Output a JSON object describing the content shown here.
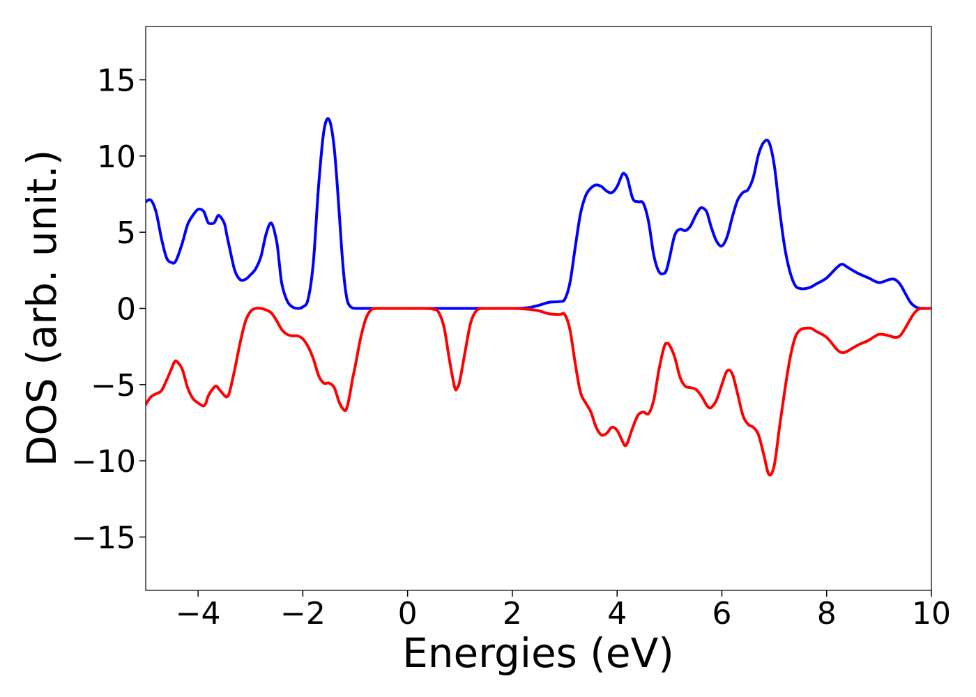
{
  "chart_data": {
    "type": "line",
    "xlabel": "Energies (eV)",
    "ylabel": "DOS (arb. unit.)",
    "xlim": [
      -5,
      10
    ],
    "ylim": [
      -18.5,
      18.5
    ],
    "xticks": [
      -4,
      -2,
      0,
      2,
      4,
      6,
      8,
      10
    ],
    "yticks": [
      -15,
      -10,
      -5,
      0,
      5,
      10,
      15
    ],
    "xtick_labels": [
      "−4",
      "−2",
      "0",
      "2",
      "4",
      "6",
      "8",
      "10"
    ],
    "ytick_labels": [
      "−15",
      "−10",
      "−5",
      "0",
      "5",
      "10",
      "15"
    ],
    "grid": false,
    "legend": "none",
    "series": [
      {
        "color": "#0000ff",
        "x": [
          -5.0,
          -4.9,
          -4.8,
          -4.7,
          -4.6,
          -4.5,
          -4.45,
          -4.4,
          -4.3,
          -4.2,
          -4.1,
          -4.0,
          -3.9,
          -3.85,
          -3.8,
          -3.7,
          -3.65,
          -3.6,
          -3.5,
          -3.45,
          -3.4,
          -3.3,
          -3.2,
          -3.1,
          -3.0,
          -2.9,
          -2.8,
          -2.7,
          -2.6,
          -2.5,
          -2.45,
          -2.4,
          -2.3,
          -2.2,
          -2.1,
          -2.0,
          -1.9,
          -1.8,
          -1.7,
          -1.6,
          -1.5,
          -1.4,
          -1.3,
          -1.25,
          -1.2,
          -1.15,
          -1.1,
          -1.05,
          -1.0,
          -0.9,
          -0.8,
          -0.7,
          -0.6,
          -0.5,
          0.0,
          1.0,
          2.0,
          2.3,
          2.5,
          2.7,
          2.9,
          3.0,
          3.1,
          3.2,
          3.3,
          3.4,
          3.5,
          3.6,
          3.7,
          3.8,
          3.9,
          4.0,
          4.1,
          4.15,
          4.2,
          4.3,
          4.4,
          4.5,
          4.6,
          4.7,
          4.8,
          4.9,
          4.95,
          5.0,
          5.1,
          5.2,
          5.3,
          5.4,
          5.5,
          5.6,
          5.7,
          5.75,
          5.8,
          5.9,
          6.0,
          6.1,
          6.2,
          6.3,
          6.4,
          6.5,
          6.6,
          6.7,
          6.8,
          6.9,
          7.0,
          7.1,
          7.2,
          7.3,
          7.4,
          7.5,
          7.6,
          7.7,
          7.8,
          8.0,
          8.2,
          8.3,
          8.4,
          8.6,
          8.8,
          9.0,
          9.2,
          9.3,
          9.4,
          9.5,
          9.6,
          9.7,
          9.8,
          9.9,
          10.0
        ],
        "values": [
          7.0,
          7.1,
          6.3,
          4.6,
          3.3,
          3.0,
          3.0,
          3.3,
          4.3,
          5.5,
          6.1,
          6.5,
          6.4,
          6.0,
          5.6,
          5.6,
          5.9,
          6.1,
          5.6,
          4.8,
          4.0,
          2.5,
          1.9,
          1.9,
          2.2,
          2.6,
          3.4,
          4.9,
          5.6,
          4.4,
          3.0,
          1.6,
          0.5,
          0.1,
          0.0,
          0.1,
          0.6,
          3.0,
          8.0,
          11.6,
          12.4,
          10.5,
          6.0,
          3.5,
          1.6,
          0.5,
          0.15,
          0.03,
          0.0,
          0.0,
          0.0,
          0.0,
          0.0,
          0.0,
          0.0,
          0.0,
          0.0,
          0.05,
          0.2,
          0.4,
          0.45,
          0.6,
          1.7,
          4.0,
          6.2,
          7.4,
          7.9,
          8.1,
          8.0,
          7.7,
          7.6,
          8.0,
          8.8,
          8.8,
          8.5,
          7.2,
          7.0,
          6.9,
          5.7,
          3.5,
          2.4,
          2.3,
          2.6,
          3.3,
          4.8,
          5.2,
          5.1,
          5.4,
          6.1,
          6.6,
          6.4,
          5.9,
          5.3,
          4.4,
          4.1,
          4.7,
          6.0,
          7.1,
          7.6,
          7.8,
          8.6,
          10.1,
          10.9,
          10.9,
          9.4,
          6.5,
          4.0,
          2.4,
          1.5,
          1.3,
          1.3,
          1.4,
          1.6,
          2.0,
          2.7,
          2.9,
          2.7,
          2.3,
          2.0,
          1.7,
          1.9,
          1.9,
          1.6,
          1.0,
          0.4,
          0.1,
          0.0,
          0.0,
          0.0
        ]
      },
      {
        "color": "#ff0000",
        "x": [
          -5.0,
          -4.9,
          -4.8,
          -4.7,
          -4.6,
          -4.5,
          -4.45,
          -4.4,
          -4.3,
          -4.2,
          -4.1,
          -4.0,
          -3.9,
          -3.85,
          -3.8,
          -3.7,
          -3.65,
          -3.6,
          -3.5,
          -3.45,
          -3.4,
          -3.3,
          -3.2,
          -3.1,
          -3.0,
          -2.9,
          -2.8,
          -2.7,
          -2.6,
          -2.5,
          -2.4,
          -2.3,
          -2.2,
          -2.1,
          -2.0,
          -1.9,
          -1.8,
          -1.7,
          -1.6,
          -1.5,
          -1.4,
          -1.3,
          -1.2,
          -1.15,
          -1.1,
          -1.05,
          -1.0,
          -0.9,
          -0.8,
          -0.7,
          -0.6,
          -0.5,
          -0.3,
          0.0,
          0.3,
          0.5,
          0.6,
          0.7,
          0.8,
          0.9,
          0.95,
          1.0,
          1.1,
          1.2,
          1.3,
          1.4,
          1.5,
          2.0,
          2.3,
          2.5,
          2.7,
          2.9,
          3.0,
          3.1,
          3.2,
          3.3,
          3.4,
          3.5,
          3.6,
          3.7,
          3.8,
          3.9,
          4.0,
          4.1,
          4.15,
          4.2,
          4.3,
          4.4,
          4.5,
          4.6,
          4.7,
          4.8,
          4.9,
          4.95,
          5.0,
          5.1,
          5.2,
          5.3,
          5.4,
          5.5,
          5.6,
          5.7,
          5.75,
          5.8,
          5.9,
          6.0,
          6.1,
          6.2,
          6.3,
          6.4,
          6.5,
          6.6,
          6.7,
          6.8,
          6.9,
          7.0,
          7.1,
          7.2,
          7.3,
          7.4,
          7.5,
          7.6,
          7.7,
          7.8,
          8.0,
          8.2,
          8.3,
          8.4,
          8.6,
          8.8,
          9.0,
          9.2,
          9.3,
          9.4,
          9.5,
          9.6,
          9.7,
          9.8,
          9.9,
          10.0
        ],
        "values": [
          -6.3,
          -5.8,
          -5.6,
          -5.4,
          -4.7,
          -3.9,
          -3.5,
          -3.5,
          -4.0,
          -5.2,
          -5.9,
          -6.2,
          -6.4,
          -6.2,
          -5.7,
          -5.2,
          -5.1,
          -5.3,
          -5.7,
          -5.8,
          -5.5,
          -4.0,
          -2.3,
          -0.9,
          -0.2,
          0.0,
          0.0,
          -0.1,
          -0.3,
          -0.8,
          -1.4,
          -1.7,
          -1.8,
          -1.8,
          -2.0,
          -2.5,
          -3.3,
          -4.4,
          -4.9,
          -4.9,
          -5.2,
          -6.2,
          -6.7,
          -6.4,
          -5.6,
          -4.6,
          -3.8,
          -2.0,
          -0.7,
          -0.1,
          0.0,
          0.0,
          0.0,
          0.0,
          0.0,
          -0.05,
          -0.3,
          -1.3,
          -3.4,
          -5.2,
          -5.2,
          -4.7,
          -2.8,
          -1.0,
          -0.2,
          0.0,
          0.0,
          0.0,
          -0.05,
          -0.15,
          -0.35,
          -0.4,
          -0.4,
          -1.4,
          -3.6,
          -5.5,
          -6.2,
          -6.8,
          -7.8,
          -8.3,
          -8.2,
          -7.8,
          -8.0,
          -8.7,
          -9.0,
          -8.8,
          -7.8,
          -7.0,
          -6.8,
          -6.9,
          -6.0,
          -4.0,
          -2.5,
          -2.3,
          -2.4,
          -3.2,
          -4.5,
          -5.1,
          -5.2,
          -5.3,
          -5.7,
          -6.3,
          -6.5,
          -6.5,
          -6.0,
          -5.0,
          -4.1,
          -4.3,
          -5.6,
          -7.0,
          -7.6,
          -7.8,
          -8.3,
          -9.6,
          -10.9,
          -10.3,
          -7.8,
          -5.4,
          -3.3,
          -1.9,
          -1.4,
          -1.3,
          -1.3,
          -1.5,
          -1.9,
          -2.7,
          -2.9,
          -2.8,
          -2.4,
          -2.1,
          -1.7,
          -1.8,
          -1.9,
          -1.8,
          -1.3,
          -0.7,
          -0.2,
          0.0,
          0.0,
          0.0
        ]
      }
    ]
  }
}
